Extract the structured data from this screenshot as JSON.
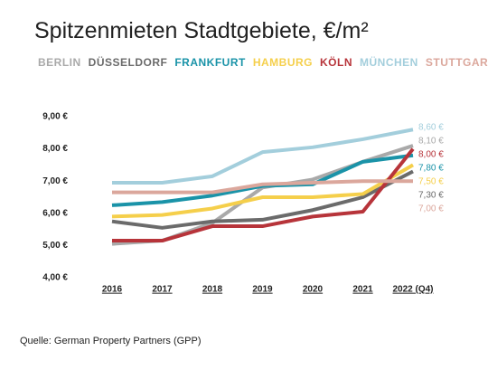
{
  "chart_data": {
    "type": "line",
    "title": "Spitzenmieten Stadtgebiete, €/m²",
    "categories": [
      "2016",
      "2017",
      "2018",
      "2019",
      "2020",
      "2021",
      "2022 (Q4)"
    ],
    "series": [
      {
        "name": "BERLIN",
        "color": "#a9a9a9",
        "values": [
          5.05,
          5.15,
          5.7,
          6.8,
          7.05,
          7.6,
          8.1
        ],
        "value_labels": [
          null,
          null,
          null,
          null,
          null,
          null,
          "8,10 €"
        ]
      },
      {
        "name": "DÜSSELDORF",
        "color": "#6b6b6b",
        "values": [
          5.75,
          5.55,
          5.75,
          5.8,
          6.1,
          6.5,
          7.3
        ],
        "value_labels": [
          null,
          null,
          null,
          null,
          null,
          null,
          "7,30 €"
        ]
      },
      {
        "name": "FRANKFURT",
        "color": "#1a93a8",
        "values": [
          6.25,
          6.35,
          6.55,
          6.85,
          6.9,
          7.6,
          7.8
        ],
        "value_labels": [
          null,
          null,
          null,
          null,
          null,
          null,
          "7,80 €"
        ]
      },
      {
        "name": "HAMBURG",
        "color": "#f5cf4b",
        "values": [
          5.9,
          5.95,
          6.15,
          6.5,
          6.5,
          6.6,
          7.5
        ],
        "value_labels": [
          null,
          null,
          null,
          null,
          null,
          null,
          "7,50 €"
        ]
      },
      {
        "name": "KÖLN",
        "color": "#b7343a",
        "values": [
          5.15,
          5.15,
          5.6,
          5.6,
          5.9,
          6.05,
          8.0
        ],
        "value_labels": [
          null,
          null,
          null,
          null,
          null,
          null,
          "8,00 €"
        ]
      },
      {
        "name": "MÜNCHEN",
        "color": "#a3cedc",
        "values": [
          6.95,
          6.95,
          7.15,
          7.9,
          8.05,
          8.3,
          8.6
        ],
        "value_labels": [
          null,
          null,
          null,
          null,
          null,
          null,
          "8,60 €"
        ]
      },
      {
        "name": "STUTTGART",
        "color": "#dba79c",
        "values": [
          6.65,
          6.65,
          6.65,
          6.9,
          6.95,
          7.0,
          7.0
        ],
        "value_labels": [
          null,
          null,
          null,
          null,
          null,
          null,
          "7,00 €"
        ]
      }
    ],
    "ylim": [
      4,
      9
    ],
    "yticks": [
      {
        "value": 4,
        "label": "4,00 €"
      },
      {
        "value": 5,
        "label": "5,00 €"
      },
      {
        "value": 6,
        "label": "6,00 €"
      },
      {
        "value": 7,
        "label": "7,00 €"
      },
      {
        "value": 8,
        "label": "8,00 €"
      },
      {
        "value": 9,
        "label": "9,00 €"
      }
    ],
    "grid": false,
    "source": "Quelle: German Property Partners (GPP)"
  }
}
